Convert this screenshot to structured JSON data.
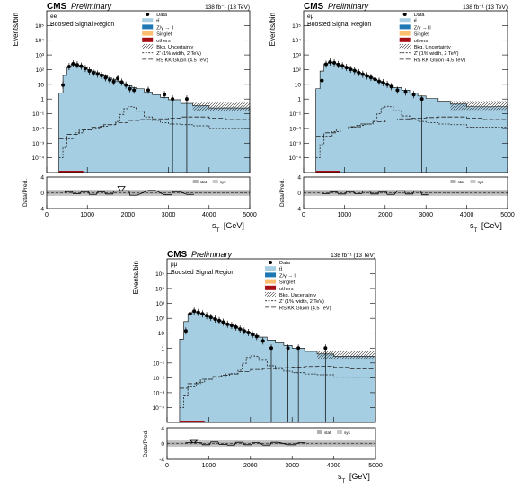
{
  "colors": {
    "ttbar": "#a6cee3",
    "zgamma": "#1f78b4",
    "singlet": "#fdbf6f",
    "others": "#a50f15",
    "uncertainty_fill": "#c8c8c8",
    "ratio_band": "#b0b0b0"
  },
  "chart_data": [
    {
      "type": "histogram-stack",
      "panel": "ee",
      "cms_label": "CMS",
      "preliminary": "Preliminary",
      "lumi": "138 fb⁻¹ (13 TeV)",
      "channel": "ee",
      "region": "Boosted Signal Region",
      "ylabel": "Events/bin",
      "xlabel": "s_T [GeV]",
      "ratio_ylabel": "Data/Pred.",
      "xlim": [
        0,
        5000
      ],
      "ylim_log": [
        1e-05,
        1000000
      ],
      "y_ticks": [
        "10⁵",
        "10⁴",
        "10³",
        "10²",
        "10",
        "1",
        "10⁻¹",
        "10⁻²",
        "10⁻³",
        "10⁻⁴"
      ],
      "x_ticks": [
        "0",
        "1000",
        "2000",
        "3000",
        "4000",
        "5000"
      ],
      "ratio_ylim": [
        -4,
        4
      ],
      "ratio_ticks": [
        "4",
        "0",
        "-4"
      ],
      "legend": [
        "Data",
        "tt̄",
        "Z/γ → ll",
        "Singlet",
        "others",
        "Bkg. Uncertainty",
        "Z' (1% width, 2 TeV)",
        "RS KK Gluon (4.5 TeV)"
      ],
      "ratio_legend": [
        "stat",
        "sys"
      ],
      "x_bins": [
        300,
        400,
        500,
        600,
        700,
        800,
        900,
        1000,
        1100,
        1200,
        1300,
        1400,
        1500,
        1600,
        1700,
        1800,
        1900,
        2000,
        2100,
        2200,
        2400,
        2600,
        2800,
        3000,
        3300,
        3600,
        4000,
        5000
      ],
      "bkg_ttbar": [
        2.5,
        40,
        160,
        230,
        200,
        170,
        140,
        100,
        80,
        62,
        50,
        37,
        28,
        22,
        17,
        13,
        10,
        8,
        6,
        5,
        3,
        2,
        1.3,
        0.9,
        0.5,
        0.35,
        0.25
      ],
      "data": [
        {
          "x": 400,
          "y": 9
        },
        {
          "x": 550,
          "y": 160
        },
        {
          "x": 650,
          "y": 250
        },
        {
          "x": 750,
          "y": 210
        },
        {
          "x": 850,
          "y": 170
        },
        {
          "x": 950,
          "y": 120
        },
        {
          "x": 1050,
          "y": 80
        },
        {
          "x": 1150,
          "y": 60
        },
        {
          "x": 1250,
          "y": 50
        },
        {
          "x": 1350,
          "y": 40
        },
        {
          "x": 1450,
          "y": 28
        },
        {
          "x": 1550,
          "y": 20
        },
        {
          "x": 1650,
          "y": 15
        },
        {
          "x": 1750,
          "y": 25
        },
        {
          "x": 1850,
          "y": 14
        },
        {
          "x": 1950,
          "y": 9
        },
        {
          "x": 2050,
          "y": 5
        },
        {
          "x": 2150,
          "y": 4
        },
        {
          "x": 2500,
          "y": 4
        },
        {
          "x": 2900,
          "y": 2
        },
        {
          "x": 3100,
          "y": 1
        },
        {
          "x": 3450,
          "y": 1
        }
      ],
      "signal_zprime_x": [
        300,
        400,
        500,
        700,
        900,
        1100,
        1300,
        1500,
        1700,
        1800,
        1900,
        2000,
        2100,
        2200,
        2400,
        2600,
        2800,
        3000,
        3300,
        3600,
        4000,
        5000
      ],
      "signal_zprime": [
        0.0001,
        0.0005,
        0.002,
        0.005,
        0.008,
        0.011,
        0.014,
        0.018,
        0.03,
        0.09,
        0.22,
        0.3,
        0.28,
        0.15,
        0.06,
        0.035,
        0.025,
        0.02,
        0.018,
        0.015,
        0.01
      ],
      "signal_kk_x": [
        300,
        500,
        800,
        1100,
        1400,
        1700,
        2000,
        2300,
        2600,
        3000,
        3300,
        3600,
        4000,
        4400,
        5000
      ],
      "signal_kk": [
        0.002,
        0.004,
        0.008,
        0.012,
        0.018,
        0.025,
        0.035,
        0.04,
        0.045,
        0.05,
        0.06,
        0.06,
        0.05,
        0.04
      ],
      "ratio": [
        {
          "x": 450,
          "y": 0.3
        },
        {
          "x": 650,
          "y": -0.2
        },
        {
          "x": 850,
          "y": 0.3
        },
        {
          "x": 1050,
          "y": -0.4
        },
        {
          "x": 1250,
          "y": 0.2
        },
        {
          "x": 1450,
          "y": -0.3
        },
        {
          "x": 1650,
          "y": 0.4
        },
        {
          "x": 1750,
          "y": 1.6
        },
        {
          "x": 1850,
          "y": 0.5
        },
        {
          "x": 2050,
          "y": -0.6
        },
        {
          "x": 2500,
          "y": 0.6
        },
        {
          "x": 2900,
          "y": -0.5
        },
        {
          "x": 3100,
          "y": 0.3
        },
        {
          "x": 3450,
          "y": -0.4
        }
      ]
    },
    {
      "type": "histogram-stack",
      "panel": "eμ",
      "cms_label": "CMS",
      "preliminary": "Preliminary",
      "lumi": "138 fb⁻¹ (13 TeV)",
      "channel": "eμ",
      "region": "Boosted Signal Region",
      "ylabel": "Events/bin",
      "xlabel": "s_T [GeV]",
      "ratio_ylabel": "Data/Pred.",
      "xlim": [
        0,
        5000
      ],
      "ylim_log": [
        1e-05,
        1000000
      ],
      "y_ticks": [
        "10⁵",
        "10⁴",
        "10³",
        "10²",
        "10",
        "1",
        "10⁻¹",
        "10⁻²",
        "10⁻³",
        "10⁻⁴"
      ],
      "x_ticks": [
        "0",
        "1000",
        "2000",
        "3000",
        "4000",
        "5000"
      ],
      "ratio_ylim": [
        -4,
        4
      ],
      "ratio_ticks": [
        "4",
        "0",
        "-4"
      ],
      "legend": [
        "Data",
        "tt̄",
        "Z/γ → ll",
        "Singlet",
        "others",
        "Bkg. Uncertainty",
        "Z' (1% width, 2 TeV)",
        "RS KK Gluon (4.5 TeV)"
      ],
      "ratio_legend": [
        "stat",
        "sys"
      ],
      "x_bins": [
        300,
        400,
        500,
        600,
        700,
        800,
        900,
        1000,
        1100,
        1200,
        1300,
        1400,
        1500,
        1600,
        1700,
        1800,
        1900,
        2000,
        2100,
        2200,
        2400,
        2600,
        2800,
        3000,
        3300,
        3600,
        4000,
        5000
      ],
      "bkg_ttbar": [
        5,
        80,
        250,
        320,
        280,
        230,
        190,
        140,
        110,
        85,
        65,
        50,
        38,
        30,
        22,
        17,
        13,
        10,
        8,
        6,
        4,
        2.5,
        1.6,
        1.1,
        0.7,
        0.45,
        0.3
      ],
      "data": [
        {
          "x": 450,
          "y": 18
        },
        {
          "x": 550,
          "y": 230
        },
        {
          "x": 650,
          "y": 330
        },
        {
          "x": 750,
          "y": 290
        },
        {
          "x": 850,
          "y": 220
        },
        {
          "x": 950,
          "y": 180
        },
        {
          "x": 1050,
          "y": 140
        },
        {
          "x": 1150,
          "y": 105
        },
        {
          "x": 1250,
          "y": 85
        },
        {
          "x": 1350,
          "y": 62
        },
        {
          "x": 1450,
          "y": 48
        },
        {
          "x": 1550,
          "y": 37
        },
        {
          "x": 1650,
          "y": 29
        },
        {
          "x": 1750,
          "y": 22
        },
        {
          "x": 1850,
          "y": 16
        },
        {
          "x": 1950,
          "y": 13
        },
        {
          "x": 2050,
          "y": 10
        },
        {
          "x": 2150,
          "y": 7
        },
        {
          "x": 2300,
          "y": 4
        },
        {
          "x": 2500,
          "y": 3
        },
        {
          "x": 2700,
          "y": 2
        },
        {
          "x": 2900,
          "y": 1
        }
      ],
      "signal_zprime_x": [
        300,
        400,
        500,
        700,
        900,
        1100,
        1300,
        1500,
        1700,
        1800,
        1900,
        2000,
        2100,
        2200,
        2400,
        2600,
        2800,
        3000,
        3300,
        3600,
        4000,
        5000
      ],
      "signal_zprime": [
        0.0001,
        0.0008,
        0.003,
        0.006,
        0.009,
        0.012,
        0.016,
        0.02,
        0.035,
        0.1,
        0.25,
        0.32,
        0.3,
        0.16,
        0.07,
        0.04,
        0.03,
        0.025,
        0.02,
        0.018,
        0.012
      ],
      "signal_kk_x": [
        300,
        500,
        800,
        1100,
        1400,
        1700,
        2000,
        2300,
        2600,
        3000,
        3300,
        3600,
        4000,
        4400,
        5000
      ],
      "signal_kk": [
        0.003,
        0.005,
        0.009,
        0.013,
        0.02,
        0.028,
        0.038,
        0.045,
        0.05,
        0.055,
        0.06,
        0.06,
        0.05,
        0.04
      ],
      "ratio": [
        {
          "x": 450,
          "y": -0.2
        },
        {
          "x": 650,
          "y": 0.2
        },
        {
          "x": 850,
          "y": -0.3
        },
        {
          "x": 1050,
          "y": 0.3
        },
        {
          "x": 1250,
          "y": -0.2
        },
        {
          "x": 1450,
          "y": 0.4
        },
        {
          "x": 1650,
          "y": -0.3
        },
        {
          "x": 1850,
          "y": 0.3
        },
        {
          "x": 2050,
          "y": -0.4
        },
        {
          "x": 2300,
          "y": 0.5
        },
        {
          "x": 2500,
          "y": -0.3
        },
        {
          "x": 2700,
          "y": 0.4
        },
        {
          "x": 2900,
          "y": -0.5
        }
      ]
    },
    {
      "type": "histogram-stack",
      "panel": "μμ",
      "cms_label": "CMS",
      "preliminary": "Preliminary",
      "lumi": "138 fb⁻¹ (13 TeV)",
      "channel": "μμ",
      "region": "Boosted Signal Region",
      "ylabel": "Events/bin",
      "xlabel": "s_T [GeV]",
      "ratio_ylabel": "Data/Pred.",
      "xlim": [
        0,
        5000
      ],
      "ylim_log": [
        1e-05,
        1000000
      ],
      "y_ticks": [
        "10⁵",
        "10⁴",
        "10³",
        "10²",
        "10",
        "1",
        "10⁻¹",
        "10⁻²",
        "10⁻³",
        "10⁻⁴"
      ],
      "x_ticks": [
        "0",
        "1000",
        "2000",
        "3000",
        "4000",
        "5000"
      ],
      "ratio_ylim": [
        -4,
        4
      ],
      "ratio_ticks": [
        "4",
        "0",
        "-4"
      ],
      "legend": [
        "Data",
        "tt̄",
        "Z/γ → ll",
        "Singlet",
        "others",
        "Bkg. Uncertainty",
        "Z' (1% width, 2 TeV)",
        "RS KK Gluon (4.5 TeV)"
      ],
      "ratio_legend": [
        "stat",
        "sys"
      ],
      "x_bins": [
        300,
        400,
        500,
        600,
        700,
        800,
        900,
        1000,
        1100,
        1200,
        1300,
        1400,
        1500,
        1600,
        1700,
        1800,
        1900,
        2000,
        2100,
        2200,
        2400,
        2600,
        2800,
        3000,
        3300,
        3600,
        4000,
        5000
      ],
      "bkg_ttbar": [
        4,
        60,
        200,
        280,
        240,
        200,
        160,
        120,
        95,
        72,
        56,
        44,
        34,
        27,
        20,
        15,
        12,
        9,
        7,
        5.5,
        3.5,
        2.2,
        1.5,
        1.0,
        0.6,
        0.4,
        0.28
      ],
      "data": [
        {
          "x": 450,
          "y": 14
        },
        {
          "x": 550,
          "y": 200
        },
        {
          "x": 650,
          "y": 300
        },
        {
          "x": 750,
          "y": 250
        },
        {
          "x": 850,
          "y": 200
        },
        {
          "x": 950,
          "y": 150
        },
        {
          "x": 1050,
          "y": 115
        },
        {
          "x": 1150,
          "y": 90
        },
        {
          "x": 1250,
          "y": 70
        },
        {
          "x": 1350,
          "y": 55
        },
        {
          "x": 1450,
          "y": 40
        },
        {
          "x": 1550,
          "y": 33
        },
        {
          "x": 1650,
          "y": 26
        },
        {
          "x": 1750,
          "y": 19
        },
        {
          "x": 1850,
          "y": 14
        },
        {
          "x": 1950,
          "y": 11
        },
        {
          "x": 2050,
          "y": 8
        },
        {
          "x": 2150,
          "y": 6
        },
        {
          "x": 2300,
          "y": 3
        },
        {
          "x": 2500,
          "y": 1
        },
        {
          "x": 2900,
          "y": 1
        },
        {
          "x": 3150,
          "y": 1
        },
        {
          "x": 3800,
          "y": 1
        }
      ],
      "signal_zprime_x": [
        300,
        400,
        500,
        700,
        900,
        1100,
        1300,
        1500,
        1700,
        1800,
        1900,
        2000,
        2100,
        2200,
        2400,
        2600,
        2800,
        3000,
        3300,
        3600,
        4000,
        5000
      ],
      "signal_zprime": [
        0.0001,
        0.0006,
        0.0025,
        0.005,
        0.008,
        0.011,
        0.015,
        0.019,
        0.032,
        0.095,
        0.23,
        0.3,
        0.28,
        0.15,
        0.065,
        0.038,
        0.028,
        0.022,
        0.018,
        0.016,
        0.011
      ],
      "signal_kk_x": [
        300,
        500,
        800,
        1100,
        1400,
        1700,
        2000,
        2300,
        2600,
        3000,
        3300,
        3600,
        4000,
        4400,
        5000
      ],
      "signal_kk": [
        0.002,
        0.004,
        0.008,
        0.012,
        0.018,
        0.026,
        0.036,
        0.042,
        0.048,
        0.052,
        0.058,
        0.06,
        0.05,
        0.04
      ],
      "ratio": [
        {
          "x": 450,
          "y": 0.2
        },
        {
          "x": 550,
          "y": 0.8
        },
        {
          "x": 650,
          "y": 0.2
        },
        {
          "x": 850,
          "y": -0.3
        },
        {
          "x": 1050,
          "y": 0.4
        },
        {
          "x": 1250,
          "y": -0.2
        },
        {
          "x": 1450,
          "y": -0.4
        },
        {
          "x": 1650,
          "y": 0.3
        },
        {
          "x": 1850,
          "y": -0.3
        },
        {
          "x": 2050,
          "y": 0.2
        },
        {
          "x": 2300,
          "y": -0.4
        },
        {
          "x": 2500,
          "y": 0.3
        },
        {
          "x": 2900,
          "y": -0.3
        },
        {
          "x": 3150,
          "y": 0.2
        }
      ]
    }
  ]
}
